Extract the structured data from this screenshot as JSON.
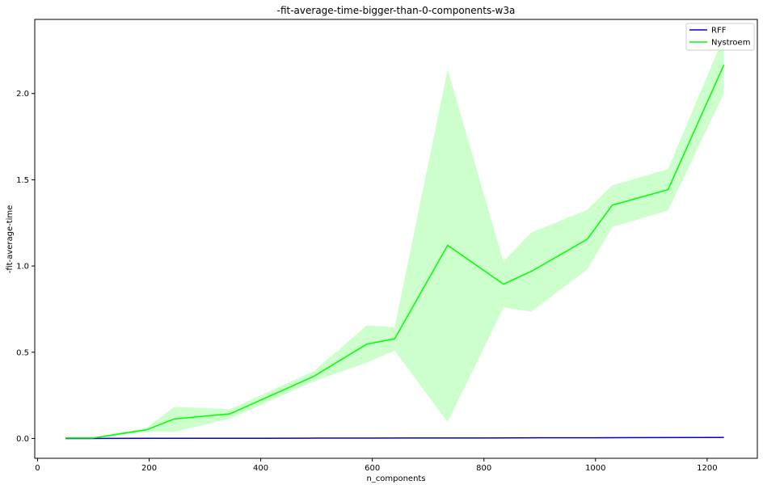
{
  "chart_data": {
    "type": "line",
    "title": "-fit-average-time-bigger-than-0-components-w3a",
    "xlabel": "n_components",
    "ylabel": "-fit-average-time",
    "xlim": [
      -5,
      1290
    ],
    "ylim": [
      -0.115,
      2.43
    ],
    "xticks": [
      0,
      200,
      400,
      600,
      800,
      1000,
      1200
    ],
    "yticks": [
      0.0,
      0.5,
      1.0,
      1.5,
      2.0
    ],
    "ytick_labels": [
      "0.0",
      "0.5",
      "1.0",
      "1.5",
      "2.0"
    ],
    "legend_position": "top-right",
    "grid": false,
    "series": [
      {
        "name": "RFF",
        "color": "#0000cc",
        "x": [
          50,
          100,
          200,
          300,
          400,
          500,
          600,
          700,
          800,
          900,
          1000,
          1100,
          1230
        ],
        "y": [
          0.0,
          0.0,
          0.001,
          0.001,
          0.001,
          0.002,
          0.002,
          0.003,
          0.003,
          0.004,
          0.004,
          0.005,
          0.006
        ]
      },
      {
        "name": "Nystroem",
        "color": "#00ff00",
        "band_color": "#ccffcc",
        "x": [
          50,
          100,
          195,
          245,
          345,
          495,
          590,
          640,
          735,
          835,
          885,
          985,
          1030,
          1130,
          1230
        ],
        "y": [
          0.003,
          0.003,
          0.05,
          0.113,
          0.143,
          0.36,
          0.547,
          0.578,
          1.12,
          0.895,
          0.969,
          1.155,
          1.353,
          1.443,
          2.166
        ],
        "lower": [
          0.0,
          0.0,
          0.04,
          0.038,
          0.115,
          0.33,
          0.44,
          0.51,
          0.094,
          0.76,
          0.735,
          0.98,
          1.225,
          1.322,
          2.0
        ],
        "upper": [
          0.006,
          0.006,
          0.06,
          0.183,
          0.17,
          0.39,
          0.655,
          0.645,
          2.14,
          1.025,
          1.195,
          1.325,
          1.468,
          1.562,
          2.332
        ]
      }
    ]
  }
}
